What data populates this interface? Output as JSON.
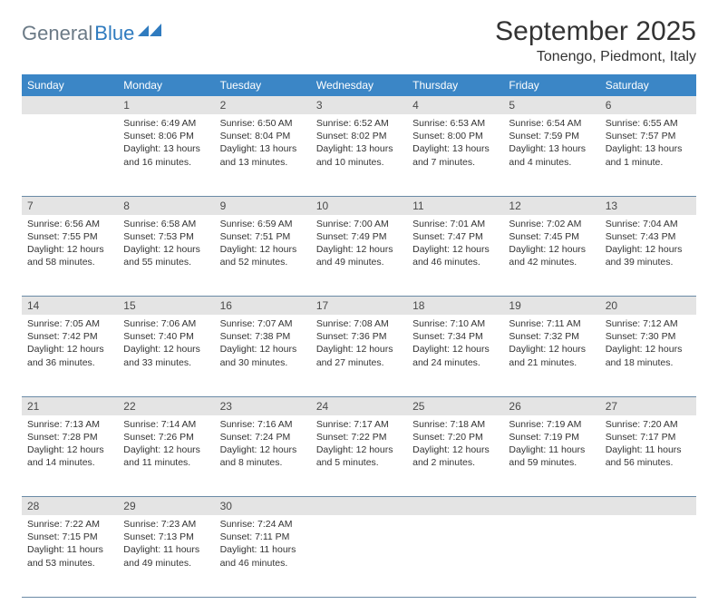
{
  "logo": {
    "gen": "General",
    "blue": "Blue",
    "mark_color": "#2f7bbf"
  },
  "title": "September 2025",
  "location": "Tonengo, Piedmont, Italy",
  "header_bg": "#3b86c6",
  "daynum_bg": "#e4e4e4",
  "rule_color": "#6a8aa6",
  "days": [
    "Sunday",
    "Monday",
    "Tuesday",
    "Wednesday",
    "Thursday",
    "Friday",
    "Saturday"
  ],
  "weeks": [
    [
      {
        "n": "",
        "lines": [
          "",
          "",
          "",
          ""
        ]
      },
      {
        "n": "1",
        "lines": [
          "Sunrise: 6:49 AM",
          "Sunset: 8:06 PM",
          "Daylight: 13 hours",
          "and 16 minutes."
        ]
      },
      {
        "n": "2",
        "lines": [
          "Sunrise: 6:50 AM",
          "Sunset: 8:04 PM",
          "Daylight: 13 hours",
          "and 13 minutes."
        ]
      },
      {
        "n": "3",
        "lines": [
          "Sunrise: 6:52 AM",
          "Sunset: 8:02 PM",
          "Daylight: 13 hours",
          "and 10 minutes."
        ]
      },
      {
        "n": "4",
        "lines": [
          "Sunrise: 6:53 AM",
          "Sunset: 8:00 PM",
          "Daylight: 13 hours",
          "and 7 minutes."
        ]
      },
      {
        "n": "5",
        "lines": [
          "Sunrise: 6:54 AM",
          "Sunset: 7:59 PM",
          "Daylight: 13 hours",
          "and 4 minutes."
        ]
      },
      {
        "n": "6",
        "lines": [
          "Sunrise: 6:55 AM",
          "Sunset: 7:57 PM",
          "Daylight: 13 hours",
          "and 1 minute."
        ]
      }
    ],
    [
      {
        "n": "7",
        "lines": [
          "Sunrise: 6:56 AM",
          "Sunset: 7:55 PM",
          "Daylight: 12 hours",
          "and 58 minutes."
        ]
      },
      {
        "n": "8",
        "lines": [
          "Sunrise: 6:58 AM",
          "Sunset: 7:53 PM",
          "Daylight: 12 hours",
          "and 55 minutes."
        ]
      },
      {
        "n": "9",
        "lines": [
          "Sunrise: 6:59 AM",
          "Sunset: 7:51 PM",
          "Daylight: 12 hours",
          "and 52 minutes."
        ]
      },
      {
        "n": "10",
        "lines": [
          "Sunrise: 7:00 AM",
          "Sunset: 7:49 PM",
          "Daylight: 12 hours",
          "and 49 minutes."
        ]
      },
      {
        "n": "11",
        "lines": [
          "Sunrise: 7:01 AM",
          "Sunset: 7:47 PM",
          "Daylight: 12 hours",
          "and 46 minutes."
        ]
      },
      {
        "n": "12",
        "lines": [
          "Sunrise: 7:02 AM",
          "Sunset: 7:45 PM",
          "Daylight: 12 hours",
          "and 42 minutes."
        ]
      },
      {
        "n": "13",
        "lines": [
          "Sunrise: 7:04 AM",
          "Sunset: 7:43 PM",
          "Daylight: 12 hours",
          "and 39 minutes."
        ]
      }
    ],
    [
      {
        "n": "14",
        "lines": [
          "Sunrise: 7:05 AM",
          "Sunset: 7:42 PM",
          "Daylight: 12 hours",
          "and 36 minutes."
        ]
      },
      {
        "n": "15",
        "lines": [
          "Sunrise: 7:06 AM",
          "Sunset: 7:40 PM",
          "Daylight: 12 hours",
          "and 33 minutes."
        ]
      },
      {
        "n": "16",
        "lines": [
          "Sunrise: 7:07 AM",
          "Sunset: 7:38 PM",
          "Daylight: 12 hours",
          "and 30 minutes."
        ]
      },
      {
        "n": "17",
        "lines": [
          "Sunrise: 7:08 AM",
          "Sunset: 7:36 PM",
          "Daylight: 12 hours",
          "and 27 minutes."
        ]
      },
      {
        "n": "18",
        "lines": [
          "Sunrise: 7:10 AM",
          "Sunset: 7:34 PM",
          "Daylight: 12 hours",
          "and 24 minutes."
        ]
      },
      {
        "n": "19",
        "lines": [
          "Sunrise: 7:11 AM",
          "Sunset: 7:32 PM",
          "Daylight: 12 hours",
          "and 21 minutes."
        ]
      },
      {
        "n": "20",
        "lines": [
          "Sunrise: 7:12 AM",
          "Sunset: 7:30 PM",
          "Daylight: 12 hours",
          "and 18 minutes."
        ]
      }
    ],
    [
      {
        "n": "21",
        "lines": [
          "Sunrise: 7:13 AM",
          "Sunset: 7:28 PM",
          "Daylight: 12 hours",
          "and 14 minutes."
        ]
      },
      {
        "n": "22",
        "lines": [
          "Sunrise: 7:14 AM",
          "Sunset: 7:26 PM",
          "Daylight: 12 hours",
          "and 11 minutes."
        ]
      },
      {
        "n": "23",
        "lines": [
          "Sunrise: 7:16 AM",
          "Sunset: 7:24 PM",
          "Daylight: 12 hours",
          "and 8 minutes."
        ]
      },
      {
        "n": "24",
        "lines": [
          "Sunrise: 7:17 AM",
          "Sunset: 7:22 PM",
          "Daylight: 12 hours",
          "and 5 minutes."
        ]
      },
      {
        "n": "25",
        "lines": [
          "Sunrise: 7:18 AM",
          "Sunset: 7:20 PM",
          "Daylight: 12 hours",
          "and 2 minutes."
        ]
      },
      {
        "n": "26",
        "lines": [
          "Sunrise: 7:19 AM",
          "Sunset: 7:19 PM",
          "Daylight: 11 hours",
          "and 59 minutes."
        ]
      },
      {
        "n": "27",
        "lines": [
          "Sunrise: 7:20 AM",
          "Sunset: 7:17 PM",
          "Daylight: 11 hours",
          "and 56 minutes."
        ]
      }
    ],
    [
      {
        "n": "28",
        "lines": [
          "Sunrise: 7:22 AM",
          "Sunset: 7:15 PM",
          "Daylight: 11 hours",
          "and 53 minutes."
        ]
      },
      {
        "n": "29",
        "lines": [
          "Sunrise: 7:23 AM",
          "Sunset: 7:13 PM",
          "Daylight: 11 hours",
          "and 49 minutes."
        ]
      },
      {
        "n": "30",
        "lines": [
          "Sunrise: 7:24 AM",
          "Sunset: 7:11 PM",
          "Daylight: 11 hours",
          "and 46 minutes."
        ]
      },
      {
        "n": "",
        "lines": [
          "",
          "",
          "",
          ""
        ]
      },
      {
        "n": "",
        "lines": [
          "",
          "",
          "",
          ""
        ]
      },
      {
        "n": "",
        "lines": [
          "",
          "",
          "",
          ""
        ]
      },
      {
        "n": "",
        "lines": [
          "",
          "",
          "",
          ""
        ]
      }
    ]
  ]
}
